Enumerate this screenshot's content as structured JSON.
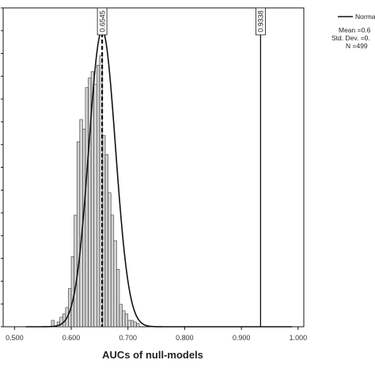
{
  "chart_data": {
    "type": "bar",
    "xlabel": "AUCs of null-models",
    "xlim": [
      0.48,
      1.01
    ],
    "ylim": [
      0,
      1.0
    ],
    "x_ticks": [
      "0.500",
      "0.600",
      "0.700",
      "0.800",
      "0.900",
      "1.000"
    ],
    "x_tick_values": [
      0.5,
      0.6,
      0.7,
      0.8,
      0.9,
      1.0
    ],
    "grid": false,
    "legend_placement": "top-right",
    "bar_fill": "#d4d4d4",
    "bar_stroke": "#333333",
    "bins": {
      "width": 0.005,
      "starts": [
        0.565,
        0.575,
        0.58,
        0.585,
        0.59,
        0.595,
        0.6,
        0.605,
        0.61,
        0.615,
        0.62,
        0.625,
        0.63,
        0.635,
        0.64,
        0.645,
        0.65,
        0.655,
        0.66,
        0.665,
        0.67,
        0.675,
        0.68,
        0.685,
        0.69,
        0.695,
        0.7,
        0.705,
        0.71,
        0.715
      ],
      "heights": [
        0.02,
        0.015,
        0.03,
        0.04,
        0.06,
        0.12,
        0.22,
        0.35,
        0.58,
        0.65,
        0.62,
        0.75,
        0.78,
        0.8,
        0.76,
        0.82,
        0.85,
        0.6,
        0.54,
        0.42,
        0.35,
        0.27,
        0.18,
        0.07,
        0.05,
        0.04,
        0.02,
        0.02,
        0.015,
        0.01
      ]
    },
    "normal_curve": {
      "mean": 0.6545,
      "sd": 0.0235
    },
    "reference_lines": [
      {
        "value": 0.6545,
        "label": "0.6545",
        "style": "dashed"
      },
      {
        "value": 0.9338,
        "label": "0.9338",
        "style": "solid"
      }
    ],
    "legend": {
      "series_label": "Norma",
      "stats": [
        "Mean =0.6",
        "Std. Dev. =0.",
        "N =499"
      ]
    }
  }
}
